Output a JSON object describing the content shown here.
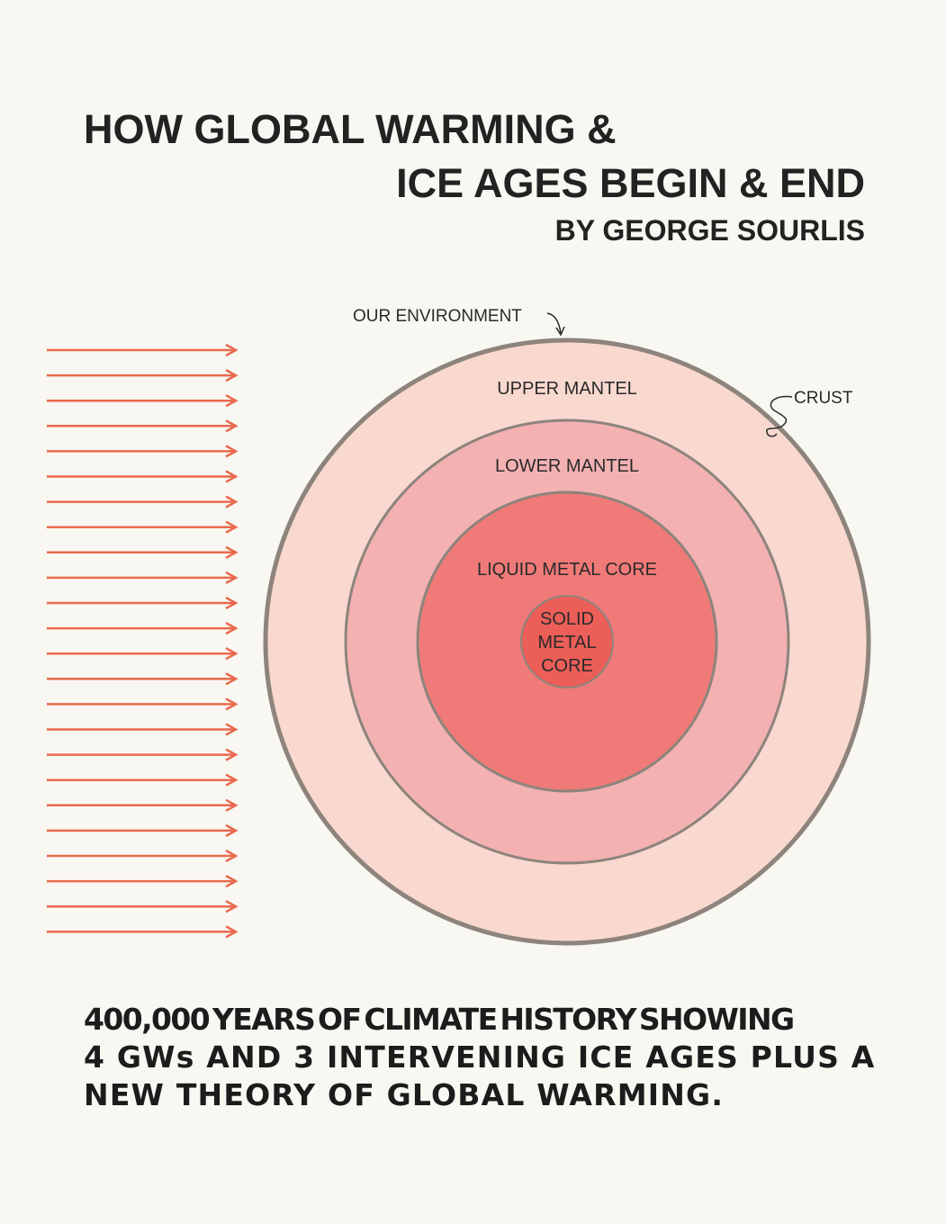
{
  "title": {
    "line1": "HOW GLOBAL WARMING &",
    "line2": "ICE AGES BEGIN & END",
    "author": "BY GEORGE SOURLIS"
  },
  "diagram": {
    "environment_label": "OUR ENVIRONMENT",
    "crust_label": "CRUST",
    "layers": {
      "upper_mantel": "UPPER MANTEL",
      "lower_mantel": "LOWER MANTEL",
      "liquid_core": "LIQUID METAL CORE",
      "solid_core_line1": "SOLID",
      "solid_core_line2": "METAL",
      "solid_core_line3": "CORE"
    },
    "colors": {
      "upper_mantel": "#f9d8cf",
      "lower_mantel": "#f3b1b2",
      "liquid_core": "#f07a78",
      "solid_core": "#ec5e58",
      "ring_stroke": "#8d847c",
      "arrows": "#e96a4d"
    },
    "arrow_count": 24
  },
  "tagline": {
    "line1": "400,000 YEARS OF CLIMATE HISTORY SHOWING",
    "line2": "4 GWs AND 3 INTERVENING ICE AGES PLUS A",
    "line3": "NEW THEORY OF GLOBAL WARMING."
  }
}
